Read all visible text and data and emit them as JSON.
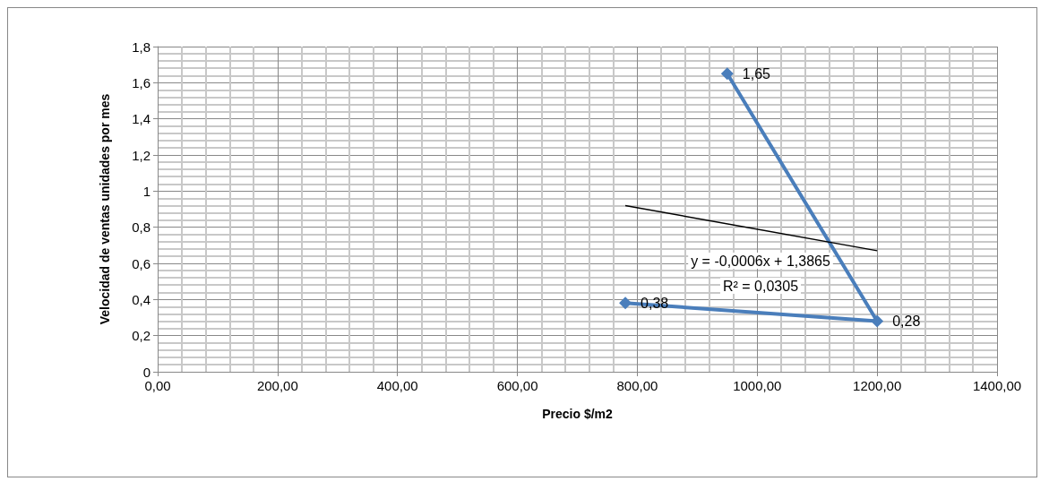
{
  "chart_data": {
    "type": "line",
    "xlabel": "Precio $/m2",
    "ylabel": "Velocidad de ventas unidades por mes",
    "xlim": [
      0,
      1400
    ],
    "xticks": [
      {
        "value": 0,
        "label": "0,00"
      },
      {
        "value": 200,
        "label": "200,00"
      },
      {
        "value": 400,
        "label": "400,00"
      },
      {
        "value": 600,
        "label": "600,00"
      },
      {
        "value": 800,
        "label": "800,00"
      },
      {
        "value": 1000,
        "label": "1000,00"
      },
      {
        "value": 1200,
        "label": "1200,00"
      },
      {
        "value": 1400,
        "label": "1400,00"
      }
    ],
    "ylim": [
      0,
      1.8
    ],
    "yticks": [
      0,
      {
        "value": 0.2,
        "label": "0,2"
      },
      {
        "value": 0.4,
        "label": "0,4"
      },
      {
        "value": 0.6,
        "label": "0,6"
      },
      {
        "value": 0.8,
        "label": "0,8"
      },
      1,
      {
        "value": 1.2,
        "label": "1,2"
      },
      {
        "value": 1.4,
        "label": "1,4"
      },
      {
        "value": 1.6,
        "label": "1,6"
      },
      {
        "value": 1.8,
        "label": "1,8"
      }
    ],
    "grid": true,
    "marker": "diamond",
    "line_style": "solid",
    "series": [
      {
        "color": "#4a7ebb",
        "x": [
          780,
          1200,
          950
        ],
        "values": [
          0.38,
          0.28,
          1.65
        ],
        "value_labels": [
          "0,38",
          "0,28",
          "1,65"
        ]
      },
      {
        "type": "line",
        "color": "#000000",
        "x": [
          780,
          1200
        ],
        "values": [
          0.92,
          0.67
        ],
        "marker": "none"
      }
    ],
    "annotations": [
      "y = -0,0006x + 1,3865",
      "R² = 0,0305"
    ]
  }
}
